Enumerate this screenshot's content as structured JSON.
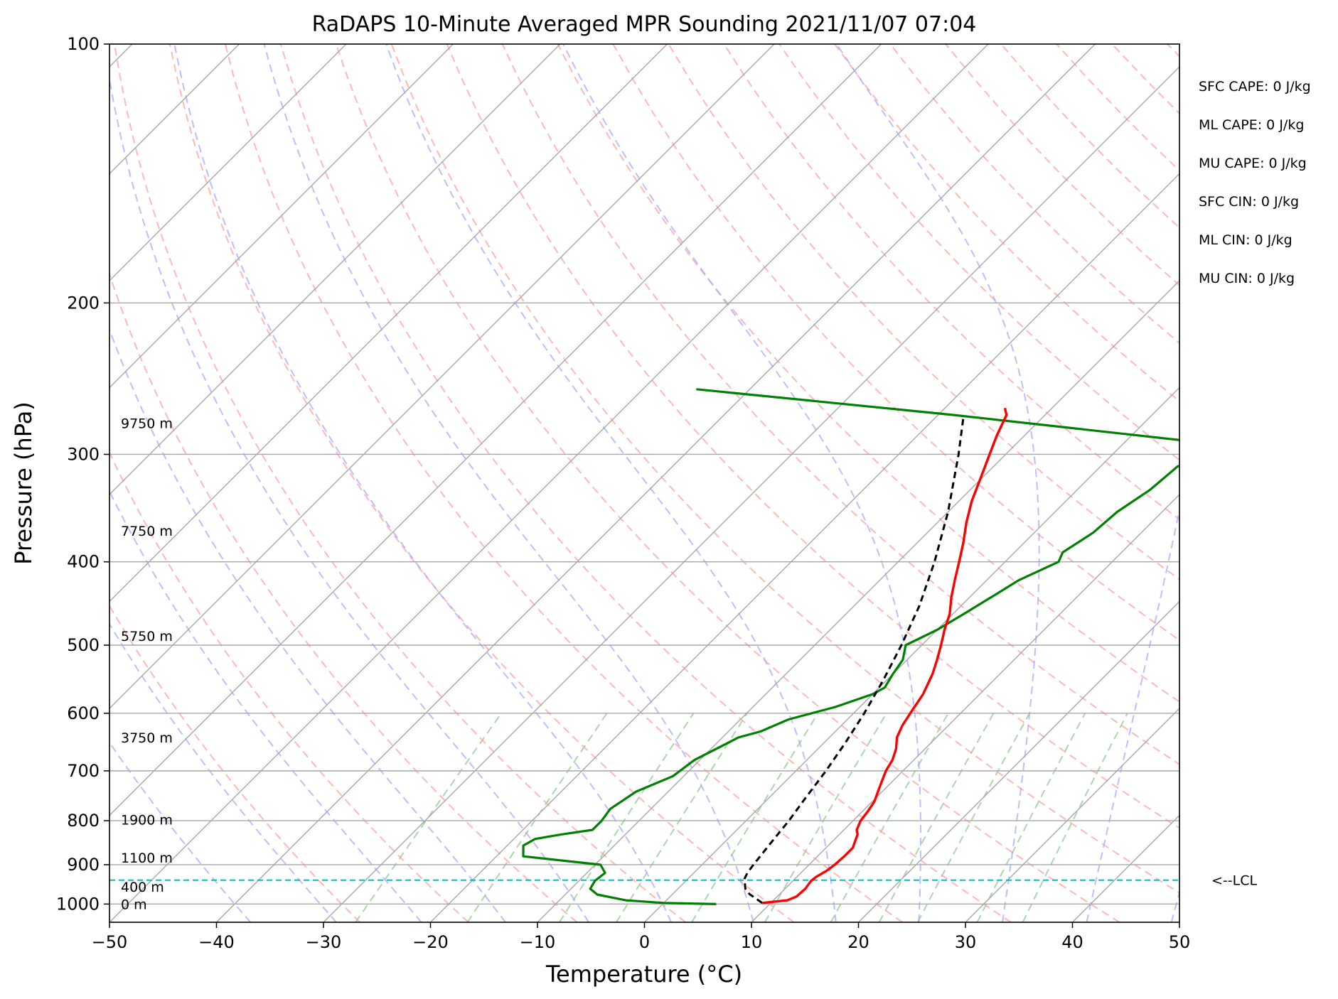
{
  "chart_data": {
    "type": "skew-t",
    "title": "RaDAPS 10-Minute Averaged MPR Sounding 2021/11/07 07:04",
    "xlabel": "Temperature (°C)",
    "ylabel": "Pressure (hPa)",
    "xlim": [
      -50,
      50
    ],
    "ylim_hpa": [
      1050,
      100
    ],
    "log_pressure_axis": true,
    "skew_degrees": 45,
    "x_ticks": [
      -50,
      -40,
      -30,
      -20,
      -10,
      0,
      10,
      20,
      30,
      40,
      50
    ],
    "x_tick_labels": [
      "−50",
      "−40",
      "−30",
      "−20",
      "−10",
      "0",
      "10",
      "20",
      "30",
      "40",
      "50"
    ],
    "y_ticks": [
      100,
      200,
      300,
      400,
      500,
      600,
      700,
      800,
      900,
      1000
    ],
    "y_tick_labels": [
      "100",
      "200",
      "300",
      "400",
      "500",
      "600",
      "700",
      "800",
      "900",
      "1000"
    ],
    "grid": true,
    "background_lines": {
      "isotherms_color": "#a8a8a8",
      "dry_adiabats_color": "#ff9f9f",
      "moist_adiabats_color": "#a7a7ff",
      "mixing_ratio_color": "#8fc88f"
    },
    "series": [
      {
        "key": "temperature",
        "color": "#ff0000",
        "points": [
          [
            997,
            9.2
          ],
          [
            990,
            11.3
          ],
          [
            980,
            11.8
          ],
          [
            960,
            11.9
          ],
          [
            940,
            11.7
          ],
          [
            930,
            11.8
          ],
          [
            915,
            12.2
          ],
          [
            900,
            12.4
          ],
          [
            880,
            12.5
          ],
          [
            860,
            12.5
          ],
          [
            845,
            12.1
          ],
          [
            830,
            11.7
          ],
          [
            820,
            11.2
          ],
          [
            800,
            10.7
          ],
          [
            780,
            10.5
          ],
          [
            760,
            10.2
          ],
          [
            740,
            9.6
          ],
          [
            720,
            9.0
          ],
          [
            700,
            8.4
          ],
          [
            680,
            8.0
          ],
          [
            660,
            7.3
          ],
          [
            640,
            6.3
          ],
          [
            620,
            5.7
          ],
          [
            600,
            5.3
          ],
          [
            570,
            4.7
          ],
          [
            540,
            3.7
          ],
          [
            520,
            2.8
          ],
          [
            500,
            1.8
          ],
          [
            480,
            0.7
          ],
          [
            460,
            -0.3
          ],
          [
            440,
            -1.7
          ],
          [
            420,
            -3.0
          ],
          [
            400,
            -4.3
          ],
          [
            380,
            -5.7
          ],
          [
            360,
            -7.3
          ],
          [
            340,
            -8.8
          ],
          [
            320,
            -10.1
          ],
          [
            300,
            -11.5
          ],
          [
            285,
            -12.6
          ],
          [
            270,
            -13.6
          ],
          [
            265,
            -14.4
          ]
        ]
      },
      {
        "key": "dewpoint",
        "color": "#008000",
        "points": [
          [
            1000,
            5.0
          ],
          [
            997,
            0.0
          ],
          [
            990,
            -3.8
          ],
          [
            975,
            -7.0
          ],
          [
            960,
            -8.2
          ],
          [
            940,
            -8.5
          ],
          [
            920,
            -8.3
          ],
          [
            900,
            -9.5
          ],
          [
            880,
            -17.5
          ],
          [
            855,
            -18.5
          ],
          [
            840,
            -18.0
          ],
          [
            830,
            -16.0
          ],
          [
            820,
            -13.5
          ],
          [
            800,
            -13.5
          ],
          [
            775,
            -13.8
          ],
          [
            740,
            -13.0
          ],
          [
            710,
            -11.0
          ],
          [
            680,
            -10.5
          ],
          [
            650,
            -9.0
          ],
          [
            640,
            -8.5
          ],
          [
            630,
            -7.0
          ],
          [
            610,
            -5.5
          ],
          [
            590,
            -2.3
          ],
          [
            570,
            0.0
          ],
          [
            560,
            0.5
          ],
          [
            540,
            0.0
          ],
          [
            520,
            -0.4
          ],
          [
            500,
            -1.5
          ],
          [
            480,
            0.0
          ],
          [
            460,
            1.0
          ],
          [
            440,
            2.0
          ],
          [
            420,
            3.0
          ],
          [
            400,
            5.0
          ],
          [
            390,
            4.5
          ],
          [
            370,
            5.5
          ],
          [
            350,
            5.8
          ],
          [
            330,
            6.8
          ],
          [
            310,
            7.2
          ],
          [
            300,
            8.5
          ],
          [
            290,
            6.5
          ],
          [
            270,
            -18.5
          ],
          [
            252,
            -45.0
          ]
        ]
      },
      {
        "key": "parcel",
        "color": "#000000",
        "points": [
          [
            997,
            9.2
          ],
          [
            974,
            7.2
          ],
          [
            960,
            6.3
          ],
          [
            935,
            5.3
          ],
          [
            920,
            5.0
          ],
          [
            900,
            4.8
          ],
          [
            850,
            4.4
          ],
          [
            800,
            4.0
          ],
          [
            750,
            3.4
          ],
          [
            700,
            2.8
          ],
          [
            650,
            2.0
          ],
          [
            600,
            1.0
          ],
          [
            550,
            -0.3
          ],
          [
            500,
            -1.9
          ],
          [
            450,
            -3.9
          ],
          [
            400,
            -6.6
          ],
          [
            350,
            -10.0
          ],
          [
            300,
            -14.4
          ],
          [
            270,
            -17.6
          ]
        ]
      }
    ],
    "lcl_line": {
      "pressure": 938,
      "color": "#00bfbf",
      "label": "<--LCL"
    },
    "height_labels": [
      {
        "text": "0 m",
        "pressure": 1000
      },
      {
        "text": "400 m",
        "pressure": 955
      },
      {
        "text": "1100 m",
        "pressure": 883
      },
      {
        "text": "1900 m",
        "pressure": 798
      },
      {
        "text": "3750 m",
        "pressure": 640
      },
      {
        "text": "5750 m",
        "pressure": 488
      },
      {
        "text": "7750 m",
        "pressure": 368
      },
      {
        "text": "9750 m",
        "pressure": 276
      }
    ],
    "cape_cin": [
      "SFC CAPE: 0 J/kg",
      "ML CAPE: 0 J/kg",
      "MU CAPE: 0 J/kg",
      "SFC CIN: 0 J/kg",
      "ML CIN: 0 J/kg",
      "MU CIN: 0 J/kg"
    ]
  }
}
